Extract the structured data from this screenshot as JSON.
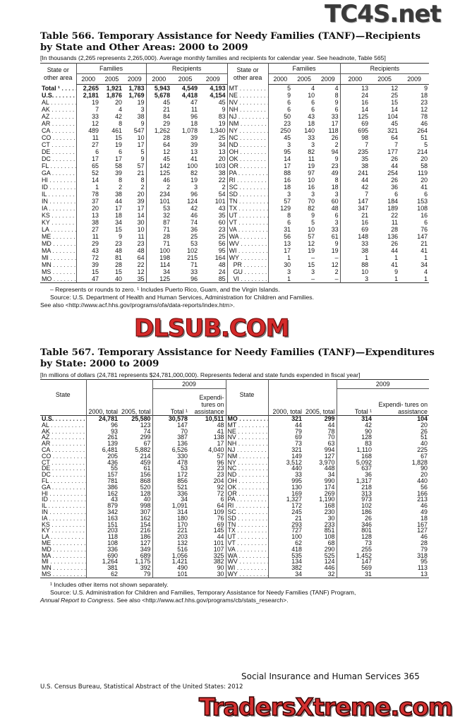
{
  "watermarks": {
    "top": "TC4S.net",
    "middle": "DLSUB.COM",
    "bottom": "TradersXtreme.com"
  },
  "t566": {
    "title": "Table 566. Temporary Assistance for Needy Families (TANF)—Recipients by State and Other Areas: 2000 to 2009",
    "headnote": "[In thousands (2,265 represents 2,265,000). Average monthly families and recipients for calendar year. See headnote, Table 565]",
    "col_state": "State or other area",
    "group_families": "Families",
    "group_recipients": "Recipients",
    "years": [
      "2000",
      "2005",
      "2009"
    ],
    "left_rows": [
      [
        "Total ¹",
        "2,265",
        "1,921",
        "1,783",
        "5,943",
        "4,549",
        "4,193"
      ],
      [
        "U.S.",
        "2,181",
        "1,876",
        "1,769",
        "5,678",
        "4,418",
        "4,154"
      ],
      [
        "AL",
        "19",
        "20",
        "19",
        "45",
        "47",
        "45"
      ],
      [
        "AK",
        "7",
        "4",
        "3",
        "21",
        "11",
        "9"
      ],
      [
        "AZ",
        "33",
        "42",
        "38",
        "84",
        "96",
        "83"
      ],
      [
        "AR",
        "12",
        "8",
        "9",
        "29",
        "18",
        "19"
      ],
      [
        "CA",
        "489",
        "461",
        "547",
        "1,262",
        "1,078",
        "1,340"
      ],
      [
        "CO",
        "11",
        "15",
        "10",
        "28",
        "39",
        "25"
      ],
      [
        "CT",
        "27",
        "19",
        "17",
        "64",
        "39",
        "34"
      ],
      [
        "DE",
        "6",
        "6",
        "5",
        "12",
        "13",
        "13"
      ],
      [
        "DC",
        "17",
        "17",
        "9",
        "45",
        "41",
        "20"
      ],
      [
        "FL",
        "65",
        "58",
        "57",
        "142",
        "100",
        "103"
      ],
      [
        "GA",
        "52",
        "39",
        "21",
        "125",
        "82",
        "38"
      ],
      [
        "HI",
        "14",
        "8",
        "8",
        "46",
        "19",
        "22"
      ],
      [
        "ID",
        "1",
        "2",
        "2",
        "2",
        "3",
        "2"
      ],
      [
        "IL",
        "78",
        "38",
        "20",
        "234",
        "96",
        "54"
      ],
      [
        "IN",
        "37",
        "44",
        "39",
        "101",
        "124",
        "101"
      ],
      [
        "IA",
        "20",
        "17",
        "17",
        "53",
        "42",
        "43"
      ],
      [
        "KS",
        "13",
        "18",
        "14",
        "32",
        "46",
        "35"
      ],
      [
        "KY",
        "38",
        "34",
        "30",
        "87",
        "74",
        "60"
      ],
      [
        "LA",
        "27",
        "15",
        "10",
        "71",
        "36",
        "23"
      ],
      [
        "ME",
        "11",
        "9",
        "11",
        "28",
        "25",
        "25"
      ],
      [
        "MD",
        "29",
        "23",
        "23",
        "71",
        "53",
        "56"
      ],
      [
        "MA",
        "43",
        "48",
        "48",
        "100",
        "102",
        "95"
      ],
      [
        "MI",
        "72",
        "81",
        "64",
        "198",
        "215",
        "164"
      ],
      [
        "MN",
        "39",
        "28",
        "22",
        "114",
        "71",
        "48"
      ],
      [
        "MS",
        "15",
        "15",
        "12",
        "34",
        "33",
        "24"
      ],
      [
        "MO",
        "47",
        "40",
        "35",
        "125",
        "96",
        "85"
      ]
    ],
    "right_rows": [
      [
        "MT",
        "5",
        "4",
        "4",
        "13",
        "12",
        "9"
      ],
      [
        "NE",
        "9",
        "10",
        "8",
        "24",
        "25",
        "18"
      ],
      [
        "NV",
        "6",
        "6",
        "9",
        "16",
        "15",
        "23"
      ],
      [
        "NH",
        "6",
        "6",
        "6",
        "14",
        "14",
        "12"
      ],
      [
        "NJ",
        "50",
        "43",
        "33",
        "125",
        "104",
        "78"
      ],
      [
        "NM",
        "23",
        "18",
        "17",
        "69",
        "45",
        "46"
      ],
      [
        "NY",
        "250",
        "140",
        "118",
        "695",
        "321",
        "264"
      ],
      [
        "NC",
        "45",
        "33",
        "26",
        "98",
        "64",
        "51"
      ],
      [
        "ND",
        "3",
        "3",
        "2",
        "7",
        "7",
        "5"
      ],
      [
        "OH",
        "95",
        "82",
        "94",
        "235",
        "177",
        "214"
      ],
      [
        "OK",
        "14",
        "11",
        "9",
        "35",
        "26",
        "20"
      ],
      [
        "OR",
        "17",
        "19",
        "23",
        "38",
        "44",
        "58"
      ],
      [
        "PA",
        "88",
        "97",
        "49",
        "241",
        "254",
        "119"
      ],
      [
        "RI",
        "16",
        "10",
        "8",
        "44",
        "26",
        "20"
      ],
      [
        "SC",
        "18",
        "16",
        "18",
        "42",
        "36",
        "41"
      ],
      [
        "SD",
        "3",
        "3",
        "3",
        "7",
        "6",
        "6"
      ],
      [
        "TN",
        "57",
        "70",
        "60",
        "147",
        "184",
        "153"
      ],
      [
        "TX",
        "129",
        "82",
        "48",
        "347",
        "189",
        "108"
      ],
      [
        "UT",
        "8",
        "9",
        "6",
        "21",
        "22",
        "16"
      ],
      [
        "VT",
        "6",
        "5",
        "3",
        "16",
        "11",
        "6"
      ],
      [
        "VA",
        "31",
        "10",
        "33",
        "69",
        "28",
        "76"
      ],
      [
        "WA",
        "56",
        "57",
        "61",
        "148",
        "136",
        "147"
      ],
      [
        "WV",
        "13",
        "12",
        "9",
        "33",
        "26",
        "21"
      ],
      [
        "WI",
        "17",
        "19",
        "19",
        "38",
        "44",
        "41"
      ],
      [
        "WY",
        "1",
        "–",
        "–",
        "1",
        "1",
        "1"
      ],
      [
        "PR",
        "30",
        "15",
        "12",
        "88",
        "41",
        "34"
      ],
      [
        "GU",
        "3",
        "3",
        "2",
        "10",
        "9",
        "4"
      ],
      [
        "VI",
        "1",
        "–",
        "–",
        "3",
        "1",
        "1"
      ]
    ],
    "notes": [
      "– Represents or rounds to zero. ¹ Includes Puerto Rico, Guam, and the Virgin Islands.",
      "Source: U.S. Department of Health and Human Services, Administration for Children and Families.",
      "See also <http://www.acf.hhs.gov/programs/ofa/data-reports/index.htm>."
    ]
  },
  "t567": {
    "title": "Table 567. Temporary Assistance for Needy Families (TANF)—Expenditures by State: 2000 to 2009",
    "headnote": "[In millions of dollars (24,781 represents $24,781,000,000). Represents federal and state funds expended in fiscal year]",
    "col_state": "State",
    "col_2000": "2000, total",
    "col_2005": "2005, total",
    "group_2009": "2009",
    "col_total": "Total ¹",
    "col_assist": "Expendi- tures on assistance",
    "left_rows": [
      [
        "U.S.",
        "24,781",
        "25,580",
        "30,578",
        "10,511"
      ],
      [
        "AL",
        "96",
        "123",
        "147",
        "48"
      ],
      [
        "AK",
        "93",
        "74",
        "70",
        "41"
      ],
      [
        "AZ",
        "261",
        "299",
        "387",
        "138"
      ],
      [
        "AR",
        "139",
        "67",
        "136",
        "17"
      ],
      [
        "CA",
        "6,481",
        "5,882",
        "6,526",
        "4,040"
      ],
      [
        "CO",
        "205",
        "214",
        "330",
        "57"
      ],
      [
        "CT",
        "436",
        "459",
        "478",
        "96"
      ],
      [
        "DE",
        "55",
        "61",
        "53",
        "23"
      ],
      [
        "DC",
        "157",
        "156",
        "172",
        "23"
      ],
      [
        "FL",
        "781",
        "868",
        "856",
        "204"
      ],
      [
        "GA",
        "386",
        "520",
        "521",
        "92"
      ],
      [
        "HI",
        "162",
        "128",
        "336",
        "72"
      ],
      [
        "ID",
        "43",
        "40",
        "34",
        "6"
      ],
      [
        "IL",
        "879",
        "998",
        "1,091",
        "64"
      ],
      [
        "IN",
        "342",
        "307",
        "314",
        "109"
      ],
      [
        "IA",
        "163",
        "162",
        "180",
        "76"
      ],
      [
        "KS",
        "151",
        "154",
        "170",
        "69"
      ],
      [
        "KY",
        "203",
        "216",
        "221",
        "145"
      ],
      [
        "LA",
        "118",
        "186",
        "203",
        "44"
      ],
      [
        "ME",
        "108",
        "127",
        "132",
        "101"
      ],
      [
        "MD",
        "336",
        "349",
        "516",
        "107"
      ],
      [
        "MA",
        "690",
        "689",
        "1,056",
        "325"
      ],
      [
        "MI",
        "1,264",
        "1,175",
        "1,421",
        "382"
      ],
      [
        "MN",
        "381",
        "392",
        "490",
        "90"
      ],
      [
        "MS",
        "62",
        "79",
        "101",
        "30"
      ]
    ],
    "right_rows": [
      [
        "MO",
        "321",
        "299",
        "314",
        "104"
      ],
      [
        "MT",
        "44",
        "44",
        "42",
        "20"
      ],
      [
        "NE",
        "79",
        "78",
        "90",
        "26"
      ],
      [
        "NV",
        "69",
        "70",
        "128",
        "51"
      ],
      [
        "NH",
        "73",
        "63",
        "83",
        "40"
      ],
      [
        "NJ",
        "321",
        "994",
        "1,110",
        "225"
      ],
      [
        "NM",
        "149",
        "127",
        "168",
        "67"
      ],
      [
        "NY",
        "3,512",
        "3,970",
        "5,092",
        "1,828"
      ],
      [
        "NC",
        "440",
        "448",
        "637",
        "90"
      ],
      [
        "ND",
        "33",
        "34",
        "36",
        "20"
      ],
      [
        "OH",
        "995",
        "990",
        "1,317",
        "440"
      ],
      [
        "OK",
        "130",
        "174",
        "218",
        "56"
      ],
      [
        "OR",
        "169",
        "269",
        "313",
        "166"
      ],
      [
        "PA",
        "1,327",
        "1,190",
        "973",
        "213"
      ],
      [
        "RI",
        "172",
        "168",
        "102",
        "46"
      ],
      [
        "SC",
        "245",
        "230",
        "186",
        "49"
      ],
      [
        "SD",
        "21",
        "30",
        "26",
        "18"
      ],
      [
        "TN",
        "293",
        "233",
        "346",
        "167"
      ],
      [
        "TX",
        "727",
        "851",
        "801",
        "127"
      ],
      [
        "UT",
        "100",
        "108",
        "128",
        "46"
      ],
      [
        "VT",
        "62",
        "68",
        "73",
        "28"
      ],
      [
        "VA",
        "418",
        "290",
        "255",
        "79"
      ],
      [
        "WA",
        "535",
        "525",
        "1,452",
        "318"
      ],
      [
        "WV",
        "134",
        "124",
        "147",
        "95"
      ],
      [
        "WI",
        "382",
        "446",
        "569",
        "113"
      ],
      [
        "WY",
        "34",
        "32",
        "31",
        "13"
      ]
    ],
    "notes": [
      "¹ Includes other items not shown separately.",
      "Source: U.S. Administration for Children and Families, Temporary Assistance for Needy Families (TANF) Program,",
      "Annual Report to Congress",
      "See also <http://www.acf.hhs.gov/programs/cb/stats_research>."
    ]
  },
  "footer": {
    "section": "Social Insurance and Human Services  365",
    "publication": "U.S. Census Bureau, Statistical Abstract of the United States: 2012"
  }
}
